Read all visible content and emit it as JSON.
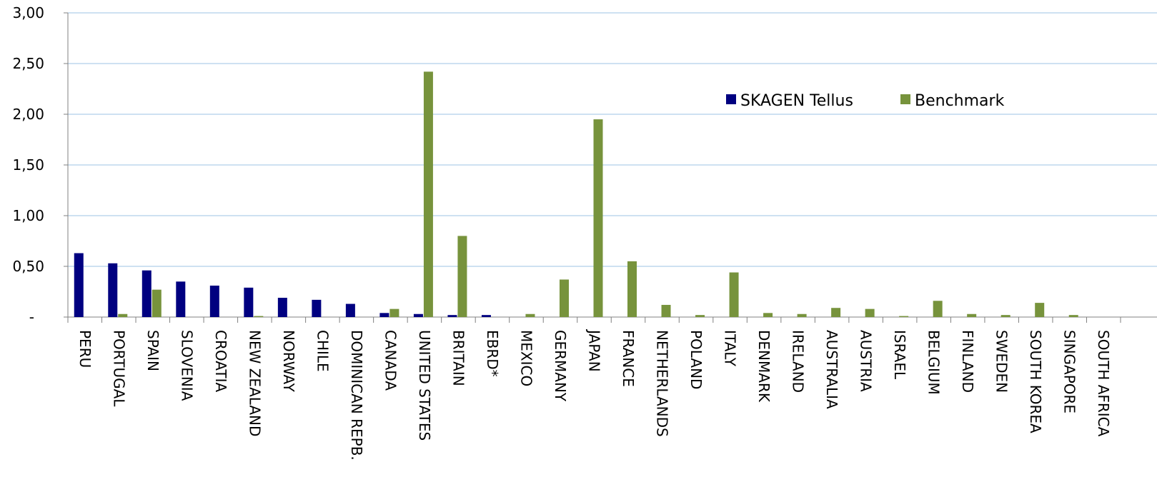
{
  "chart_data": {
    "type": "bar",
    "categories": [
      "PERU",
      "PORTUGAL",
      "SPAIN",
      "SLOVENIA",
      "CROATIA",
      "NEW ZEALAND",
      "NORWAY",
      "CHILE",
      "DOMINICAN REPB.",
      "CANADA",
      "UNITED STATES",
      "BRITAIN",
      "EBRD*",
      "MEXICO",
      "GERMANY",
      "JAPAN",
      "FRANCE",
      "NETHERLANDS",
      "POLAND",
      "ITALY",
      "DENMARK",
      "IRELAND",
      "AUSTRALIA",
      "AUSTRIA",
      "ISRAEL",
      "BELGIUM",
      "FINLAND",
      "SWEDEN",
      "SOUTH KOREA",
      "SINGAPORE",
      "SOUTH AFRICA"
    ],
    "series": [
      {
        "name": "SKAGEN Tellus",
        "color": "#000080",
        "values": [
          0.63,
          0.53,
          0.46,
          0.35,
          0.31,
          0.29,
          0.19,
          0.17,
          0.13,
          0.04,
          0.03,
          0.02,
          0.02,
          0,
          0,
          0,
          0,
          0,
          0,
          0,
          0,
          0,
          0,
          0,
          0,
          0,
          0,
          0,
          0,
          0,
          0
        ]
      },
      {
        "name": "Benchmark",
        "color": "#77933C",
        "values": [
          0,
          0.03,
          0.27,
          0,
          0,
          0.01,
          0,
          0,
          0,
          0.08,
          2.42,
          0.8,
          0,
          0.03,
          0.37,
          1.95,
          0.55,
          0.12,
          0.02,
          0.44,
          0.04,
          0.03,
          0.09,
          0.08,
          0.01,
          0.16,
          0.03,
          0.02,
          0.14,
          0.02,
          0
        ]
      }
    ],
    "y_ticks": [
      {
        "value": 0,
        "label": "-"
      },
      {
        "value": 0.5,
        "label": "0,50"
      },
      {
        "value": 1.0,
        "label": "1,00"
      },
      {
        "value": 1.5,
        "label": "1,50"
      },
      {
        "value": 2.0,
        "label": "2,00"
      },
      {
        "value": 2.5,
        "label": "2,50"
      },
      {
        "value": 3.0,
        "label": "3,00"
      }
    ],
    "ylim": [
      0,
      3
    ],
    "grid": true,
    "gridline_color": "#9DC3E6",
    "legend_position": "top-right",
    "title": "",
    "xlabel": "",
    "ylabel": ""
  }
}
